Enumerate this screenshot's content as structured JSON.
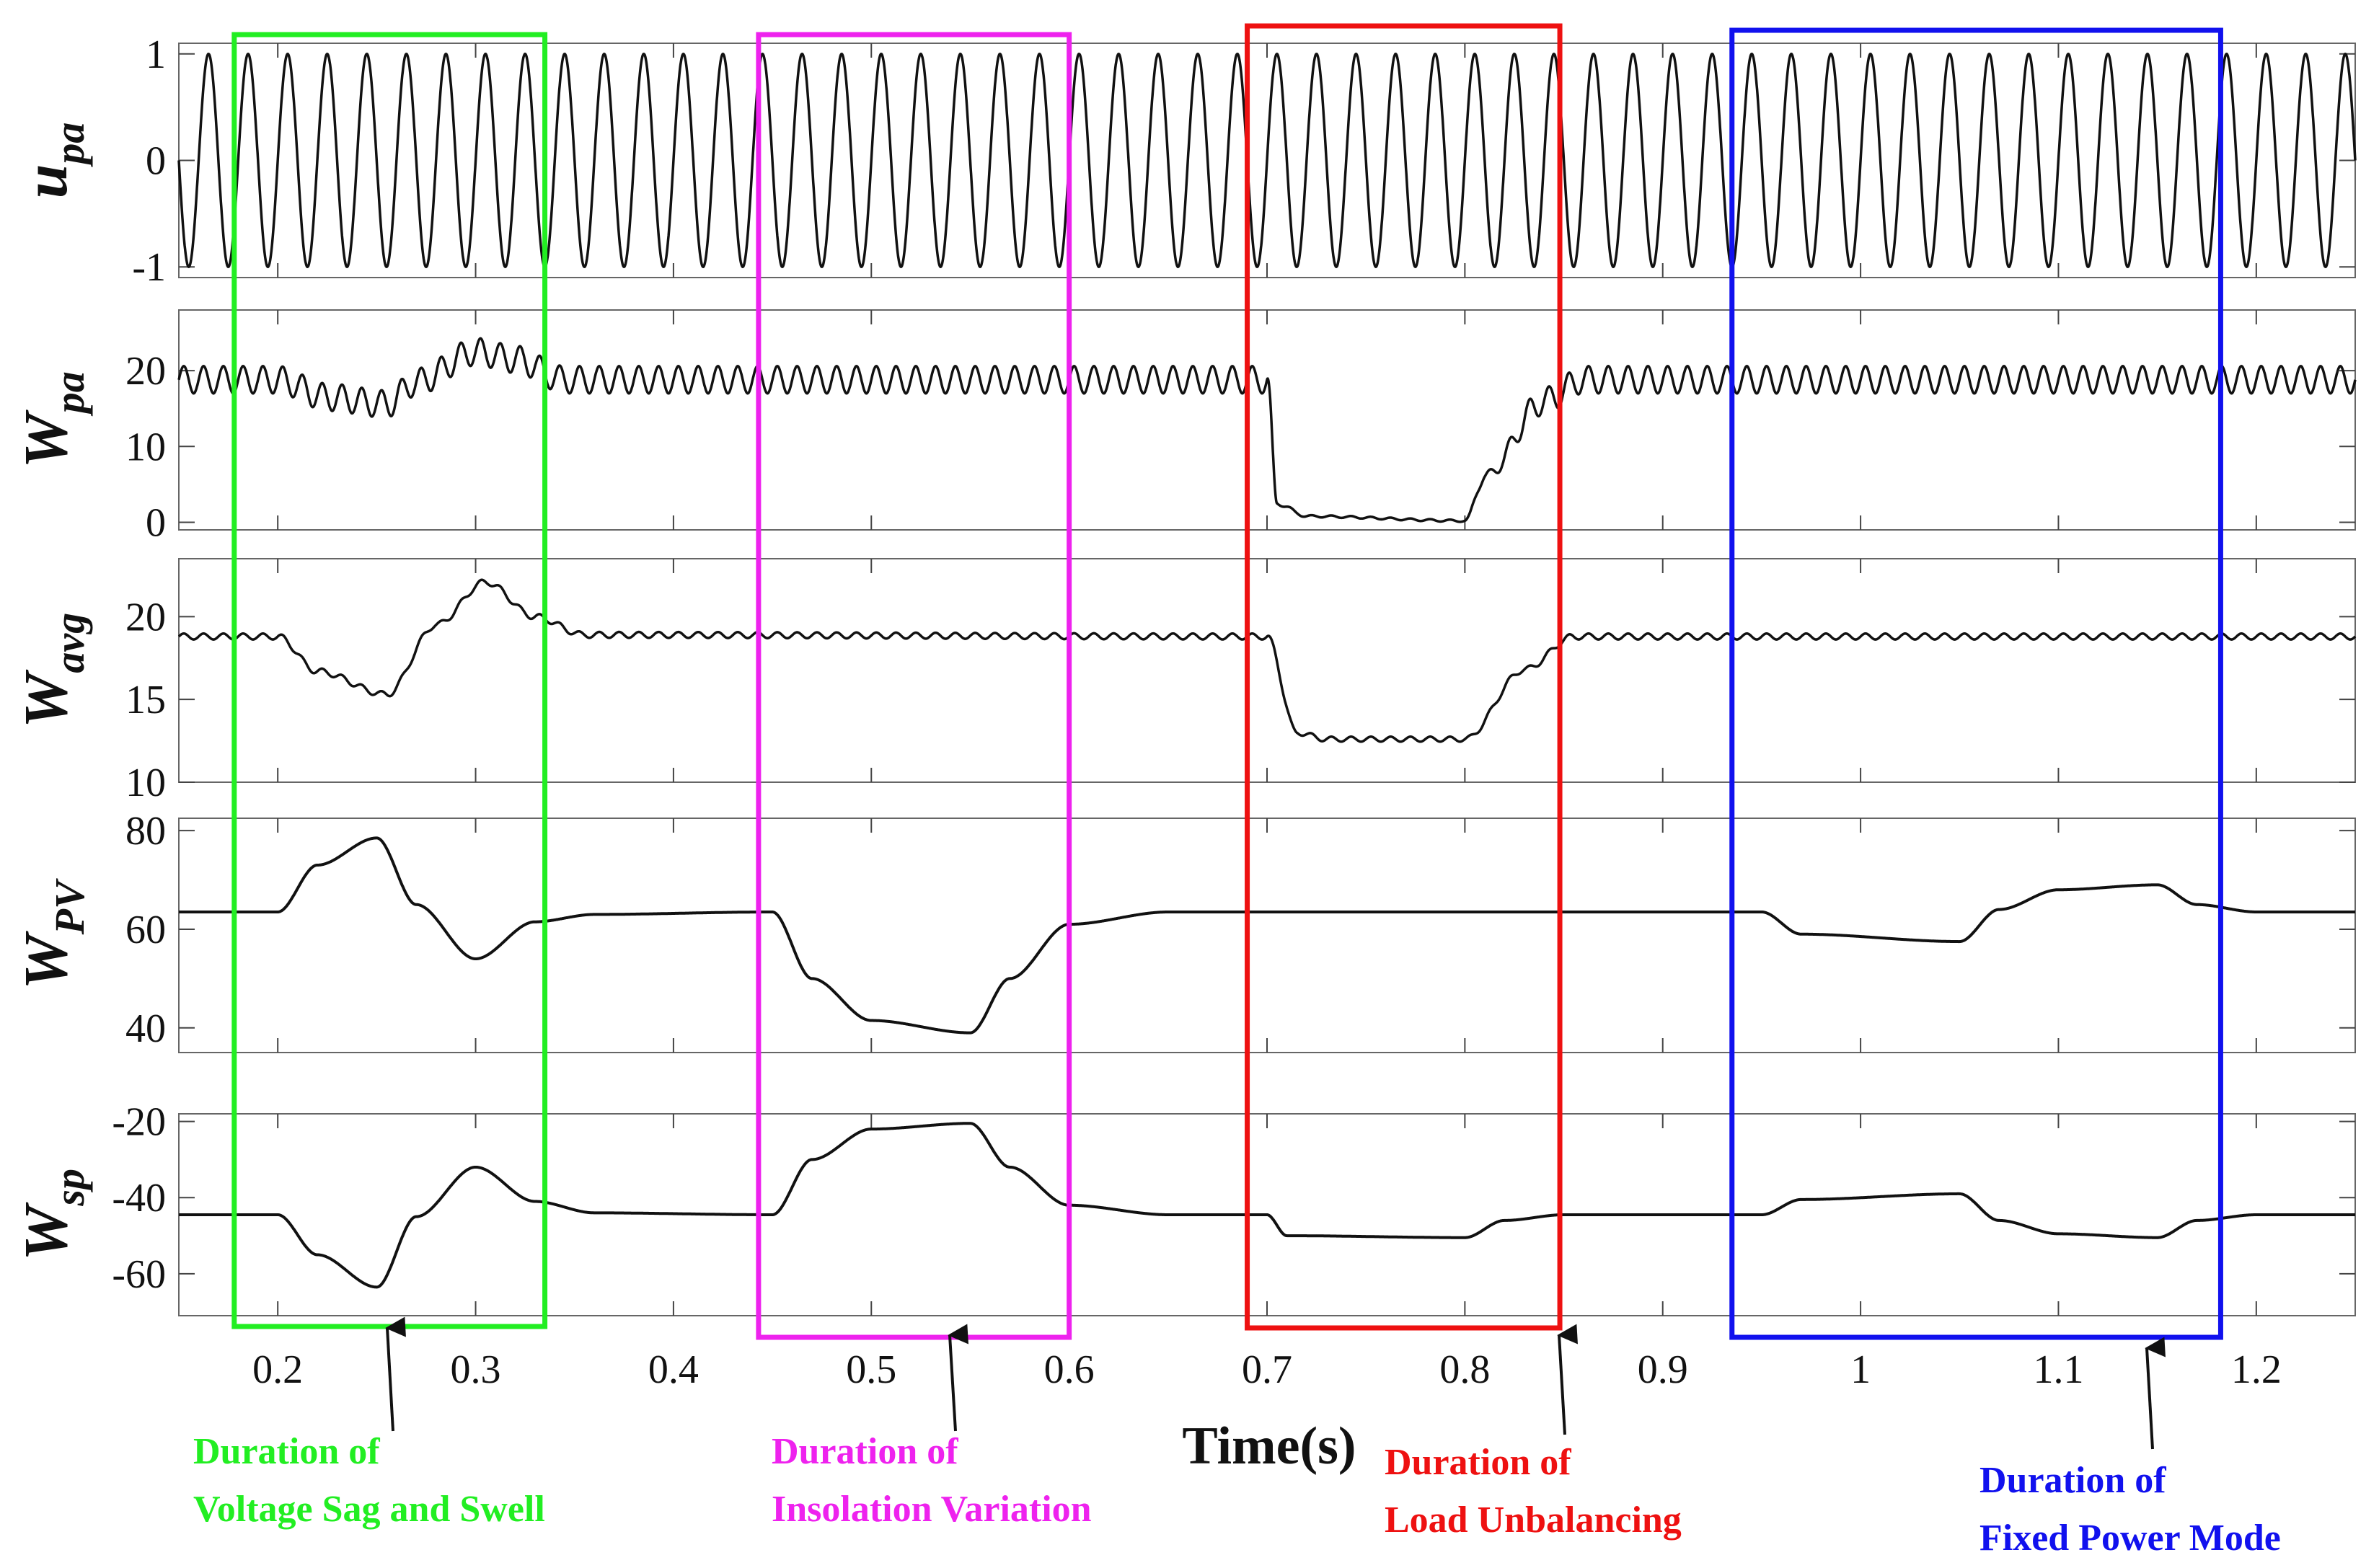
{
  "chart_data": {
    "type": "line",
    "x_axis": {
      "label": "Time(s)",
      "range": [
        0.15,
        1.25
      ],
      "ticks": [
        0.2,
        0.3,
        0.4,
        0.5,
        0.6,
        0.7,
        0.8,
        0.9,
        1,
        1.1,
        1.2
      ],
      "tick_labels": [
        "0.2",
        "0.3",
        "0.4",
        "0.5",
        "0.6",
        "0.7",
        "0.8",
        "0.9",
        "1",
        "1.1",
        "1.2"
      ]
    },
    "subplots": [
      {
        "id": "upa",
        "label": "u",
        "subscript": "pa",
        "ylim": [
          -1.1,
          1.1
        ],
        "yticks": [
          1,
          0,
          -1
        ],
        "ytick_labels": [
          "1",
          "0",
          "-1"
        ],
        "signal": {
          "kind": "sine",
          "frequency_hz": 50,
          "amplitude": 1,
          "offset": 0
        },
        "events": []
      },
      {
        "id": "wpa",
        "label": "W",
        "subscript": "pa",
        "ylim": [
          -1,
          28
        ],
        "yticks": [
          20,
          10,
          0
        ],
        "ytick_labels": [
          "20",
          "10",
          "0"
        ],
        "signal": {
          "kind": "ripple",
          "frequency_hz": 100,
          "ripple": 1.8
        },
        "events": [
          {
            "t": 0.15,
            "value": 18.8
          },
          {
            "t": 0.2,
            "value": 18.8
          },
          {
            "t": 0.225,
            "value": 16.5
          },
          {
            "t": 0.255,
            "value": 15.6
          },
          {
            "t": 0.27,
            "value": 18.5
          },
          {
            "t": 0.3,
            "value": 22.5
          },
          {
            "t": 0.32,
            "value": 21.5
          },
          {
            "t": 0.345,
            "value": 18.8
          },
          {
            "t": 0.7,
            "value": 18.8
          },
          {
            "t": 0.705,
            "value": 2.5
          },
          {
            "t": 0.72,
            "value": 0.8
          },
          {
            "t": 0.8,
            "value": 0.2
          },
          {
            "t": 0.81,
            "value": 6.0
          },
          {
            "t": 0.84,
            "value": 16.0
          },
          {
            "t": 0.86,
            "value": 18.8
          },
          {
            "t": 1.25,
            "value": 18.8
          }
        ]
      },
      {
        "id": "wavg",
        "label": "W",
        "subscript": "avg",
        "ylim": [
          10,
          23.5
        ],
        "yticks": [
          20,
          15,
          10
        ],
        "ytick_labels": [
          "20",
          "15",
          "10"
        ],
        "signal": {
          "kind": "ripple",
          "frequency_hz": 100,
          "ripple": 0.18
        },
        "events": [
          {
            "t": 0.15,
            "value": 18.8
          },
          {
            "t": 0.2,
            "value": 18.8
          },
          {
            "t": 0.22,
            "value": 16.7
          },
          {
            "t": 0.255,
            "value": 15.3
          },
          {
            "t": 0.28,
            "value": 19.5
          },
          {
            "t": 0.305,
            "value": 22.1
          },
          {
            "t": 0.33,
            "value": 20.0
          },
          {
            "t": 0.355,
            "value": 18.9
          },
          {
            "t": 0.7,
            "value": 18.8
          },
          {
            "t": 0.715,
            "value": 13.0
          },
          {
            "t": 0.73,
            "value": 12.6
          },
          {
            "t": 0.8,
            "value": 12.6
          },
          {
            "t": 0.83,
            "value": 16.8
          },
          {
            "t": 0.855,
            "value": 18.8
          },
          {
            "t": 1.25,
            "value": 18.8
          }
        ]
      },
      {
        "id": "wpv",
        "label": "W",
        "subscript": "PV",
        "ylim": [
          35,
          82.5
        ],
        "yticks": [
          80,
          60,
          40
        ],
        "ytick_labels": [
          "80",
          "60",
          "40"
        ],
        "signal": {
          "kind": "smooth"
        },
        "events": [
          {
            "t": 0.15,
            "value": 63.5
          },
          {
            "t": 0.2,
            "value": 63.5
          },
          {
            "t": 0.22,
            "value": 73.0
          },
          {
            "t": 0.25,
            "value": 78.5
          },
          {
            "t": 0.27,
            "value": 65.0
          },
          {
            "t": 0.3,
            "value": 54.0
          },
          {
            "t": 0.33,
            "value": 61.5
          },
          {
            "t": 0.36,
            "value": 63.0
          },
          {
            "t": 0.45,
            "value": 63.5
          },
          {
            "t": 0.47,
            "value": 50.0
          },
          {
            "t": 0.5,
            "value": 41.5
          },
          {
            "t": 0.55,
            "value": 39.0
          },
          {
            "t": 0.57,
            "value": 50.0
          },
          {
            "t": 0.6,
            "value": 61.0
          },
          {
            "t": 0.65,
            "value": 63.5
          },
          {
            "t": 0.95,
            "value": 63.5
          },
          {
            "t": 0.97,
            "value": 59.0
          },
          {
            "t": 1.05,
            "value": 57.5
          },
          {
            "t": 1.07,
            "value": 64.0
          },
          {
            "t": 1.1,
            "value": 68.0
          },
          {
            "t": 1.15,
            "value": 69.0
          },
          {
            "t": 1.17,
            "value": 65.0
          },
          {
            "t": 1.2,
            "value": 63.5
          },
          {
            "t": 1.25,
            "value": 63.5
          }
        ]
      },
      {
        "id": "wsp",
        "label": "W",
        "subscript": "sp",
        "ylim": [
          -71,
          -18
        ],
        "yticks": [
          -20,
          -40,
          -60
        ],
        "ytick_labels": [
          "-20",
          "-40",
          "-60"
        ],
        "signal": {
          "kind": "smooth"
        },
        "events": [
          {
            "t": 0.15,
            "value": -44.5
          },
          {
            "t": 0.2,
            "value": -44.5
          },
          {
            "t": 0.22,
            "value": -55.0
          },
          {
            "t": 0.25,
            "value": -63.5
          },
          {
            "t": 0.27,
            "value": -45.0
          },
          {
            "t": 0.3,
            "value": -32.0
          },
          {
            "t": 0.33,
            "value": -41.0
          },
          {
            "t": 0.36,
            "value": -44.0
          },
          {
            "t": 0.45,
            "value": -44.5
          },
          {
            "t": 0.47,
            "value": -30.0
          },
          {
            "t": 0.5,
            "value": -22.0
          },
          {
            "t": 0.55,
            "value": -20.5
          },
          {
            "t": 0.57,
            "value": -32.0
          },
          {
            "t": 0.6,
            "value": -42.0
          },
          {
            "t": 0.65,
            "value": -44.5
          },
          {
            "t": 0.7,
            "value": -44.5
          },
          {
            "t": 0.71,
            "value": -50.0
          },
          {
            "t": 0.8,
            "value": -50.5
          },
          {
            "t": 0.82,
            "value": -46.0
          },
          {
            "t": 0.85,
            "value": -44.5
          },
          {
            "t": 0.95,
            "value": -44.5
          },
          {
            "t": 0.97,
            "value": -40.5
          },
          {
            "t": 1.05,
            "value": -39.0
          },
          {
            "t": 1.07,
            "value": -46.0
          },
          {
            "t": 1.1,
            "value": -49.5
          },
          {
            "t": 1.15,
            "value": -50.5
          },
          {
            "t": 1.17,
            "value": -46.0
          },
          {
            "t": 1.2,
            "value": -44.5
          },
          {
            "t": 1.25,
            "value": -44.5
          }
        ]
      }
    ],
    "highlight_boxes": [
      {
        "id": "sag-swell",
        "color": "#22ee22",
        "t_start": 0.178,
        "t_end": 0.335,
        "label_lines": [
          "Duration of",
          "Voltage Sag and Swell"
        ],
        "arrow_t": 0.26
      },
      {
        "id": "insolation",
        "color": "#ee22ee",
        "t_start": 0.443,
        "t_end": 0.6,
        "label_lines": [
          "Duration of",
          "Insolation Variation"
        ],
        "arrow_t": 0.545
      },
      {
        "id": "unbalancing",
        "color": "#ee1111",
        "t_start": 0.69,
        "t_end": 0.848,
        "label_lines": [
          "Duration of",
          "Load Unbalancing"
        ],
        "arrow_t": 0.84
      },
      {
        "id": "fixed-power",
        "color": "#1111ee",
        "t_start": 0.935,
        "t_end": 1.182,
        "label_lines": [
          "Duration of",
          "Fixed Power Mode"
        ],
        "arrow_t": 1.175
      }
    ]
  }
}
